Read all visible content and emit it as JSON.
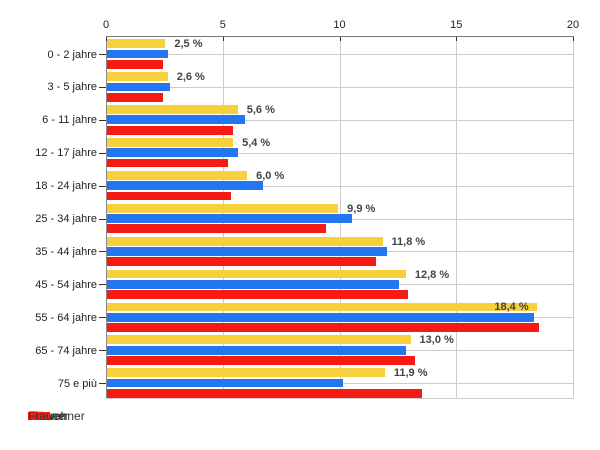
{
  "chart_data": {
    "type": "bar",
    "orientation": "horizontal",
    "title": "",
    "categories": [
      "0 - 2 jahre",
      "3 - 5 jahre",
      "6 - 11 jahre",
      "12 - 17 jahre",
      "18 - 24 jahre",
      "25 - 34 jahre",
      "35 - 44 jahre",
      "45 - 54 jahre",
      "55 - 64 jahre",
      "65 - 74 jahre",
      "75 e più"
    ],
    "series": [
      {
        "name": "Einwohner",
        "color": "#F7D13D",
        "values": [
          2.5,
          2.6,
          5.6,
          5.4,
          6.0,
          9.9,
          11.8,
          12.8,
          18.4,
          13.0,
          11.9
        ]
      },
      {
        "name": "Männer",
        "color": "#2277F0",
        "values": [
          2.6,
          2.7,
          5.9,
          5.6,
          6.7,
          10.5,
          12.0,
          12.5,
          18.3,
          12.8,
          10.1
        ]
      },
      {
        "name": "Frauen",
        "color": "#F61B12",
        "values": [
          2.4,
          2.4,
          5.4,
          5.2,
          5.3,
          9.4,
          11.5,
          12.9,
          18.5,
          13.2,
          13.5
        ]
      }
    ],
    "data_labels": [
      "2,5 %",
      "2,6 %",
      "5,6 %",
      "5,4 %",
      "6,0 %",
      "9,9 %",
      "11,8 %",
      "12,8 %",
      "18,4 %",
      "13,0 %",
      "11,9 %"
    ],
    "x_ticks": [
      "0",
      "5",
      "10",
      "15",
      "20"
    ],
    "x_tick_values": [
      0,
      5,
      10,
      15,
      20
    ],
    "xlim": [
      0,
      20
    ],
    "grid": true,
    "legend_position": "bottom",
    "colors": {
      "grid": "#CCCCCC",
      "axis": "#777777",
      "tick": "#333333",
      "category_text": "#222222",
      "data_label": "#444444",
      "background": "#FFFFFF"
    }
  }
}
